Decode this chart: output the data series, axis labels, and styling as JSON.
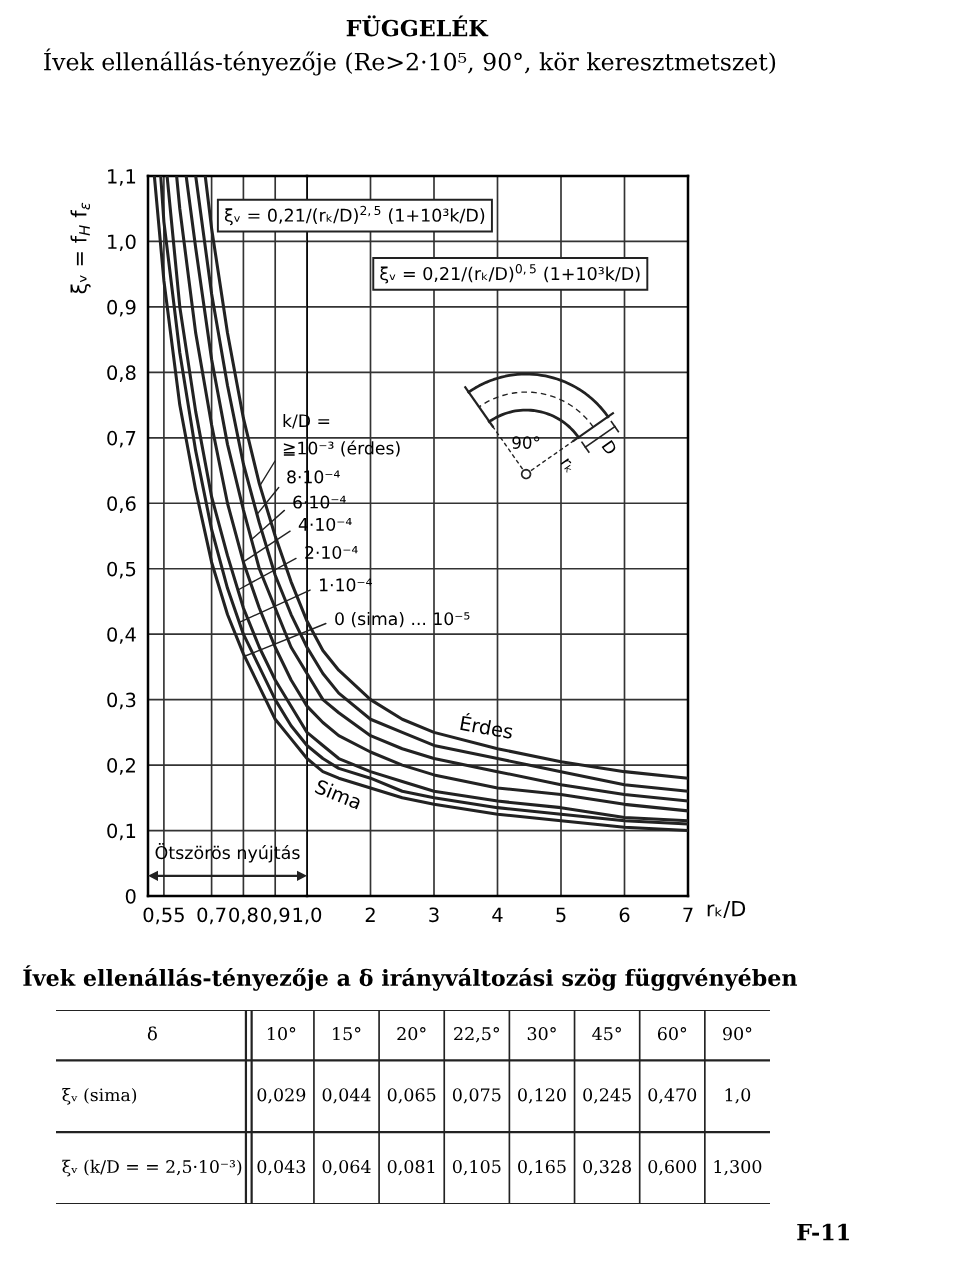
{
  "chart_data": [
    {
      "type": "line",
      "title": "Ívek ellenállás-tényezője (Re>2·10⁵, 90°, kör keresztmetszet)",
      "ylabel": "ξᵥ = f$_{H}$ f$_{ε}$",
      "legend": "right",
      "legend_title": "k/D =",
      "xlim": [
        0.5,
        1.0
      ],
      "ylim": [
        0,
        1.1
      ],
      "xticks": [
        {
          "value": 0.55,
          "label": "0,55"
        },
        {
          "value": 0.7,
          "label": "0,7"
        },
        {
          "value": 0.8,
          "label": "0,8"
        },
        {
          "value": 0.9,
          "label": "0,9"
        },
        {
          "value": 1.0,
          "label": "1,0"
        }
      ],
      "yticks": [
        0,
        {
          "value": 0.1,
          "label": "0,1"
        },
        {
          "value": 0.2,
          "label": "0,2"
        },
        {
          "value": 0.3,
          "label": "0,3"
        },
        {
          "value": 0.4,
          "label": "0,4"
        },
        {
          "value": 0.5,
          "label": "0,5"
        },
        {
          "value": 0.6,
          "label": "0,6"
        },
        {
          "value": 0.7,
          "label": "0,7"
        },
        {
          "value": 0.8,
          "label": "0,8"
        },
        {
          "value": 0.9,
          "label": "0,9"
        },
        {
          "value": 1.0,
          "label": "1,0"
        },
        {
          "value": 1.1,
          "label": "1,1"
        }
      ],
      "grid": true,
      "series": [
        {
          "name": "≧10⁻³ (érdes)",
          "color": "#222222",
          "x": [
            0.68,
            0.7,
            0.75,
            0.8,
            0.85,
            0.9,
            0.95,
            1.0
          ],
          "values": [
            1.1,
            1.02,
            0.86,
            0.73,
            0.63,
            0.55,
            0.48,
            0.42
          ]
        },
        {
          "name": "8·10⁻⁴",
          "color": "#222222",
          "x": [
            0.65,
            0.7,
            0.75,
            0.8,
            0.85,
            0.9,
            0.95,
            1.0
          ],
          "values": [
            1.1,
            0.92,
            0.78,
            0.66,
            0.57,
            0.49,
            0.43,
            0.38
          ]
        },
        {
          "name": "6·10⁻⁴",
          "color": "#222222",
          "x": [
            0.62,
            0.65,
            0.7,
            0.75,
            0.8,
            0.85,
            0.9,
            0.95,
            1.0
          ],
          "values": [
            1.1,
            0.99,
            0.82,
            0.69,
            0.59,
            0.5,
            0.44,
            0.38,
            0.34
          ]
        },
        {
          "name": "4·10⁻⁴",
          "color": "#222222",
          "x": [
            0.59,
            0.6,
            0.65,
            0.7,
            0.75,
            0.8,
            0.85,
            0.9,
            0.95,
            1.0
          ],
          "values": [
            1.1,
            1.05,
            0.86,
            0.72,
            0.6,
            0.51,
            0.44,
            0.38,
            0.33,
            0.29
          ]
        },
        {
          "name": "2·10⁻⁴",
          "color": "#222222",
          "x": [
            0.56,
            0.6,
            0.65,
            0.7,
            0.75,
            0.8,
            0.85,
            0.9,
            0.95,
            1.0
          ],
          "values": [
            1.1,
            0.9,
            0.74,
            0.61,
            0.52,
            0.44,
            0.38,
            0.33,
            0.29,
            0.25
          ]
        },
        {
          "name": "1·10⁻⁴",
          "color": "#222222",
          "x": [
            0.54,
            0.55,
            0.6,
            0.65,
            0.7,
            0.75,
            0.8,
            0.85,
            0.9,
            0.95,
            1.0
          ],
          "values": [
            1.1,
            1.03,
            0.83,
            0.68,
            0.56,
            0.47,
            0.4,
            0.35,
            0.3,
            0.26,
            0.23
          ]
        },
        {
          "name": "0 (sima) ... 10⁻⁵",
          "color": "#222222",
          "x": [
            0.52,
            0.55,
            0.6,
            0.65,
            0.7,
            0.75,
            0.8,
            0.85,
            0.9,
            0.95,
            1.0
          ],
          "values": [
            1.1,
            0.94,
            0.75,
            0.62,
            0.51,
            0.43,
            0.37,
            0.32,
            0.27,
            0.24,
            0.21
          ]
        }
      ],
      "annotations": [
        "FÜGGELÉK",
        "ξᵥ = 0,21/(rₖ/D)$^{2,5}$ (1+10³k/D)",
        "Ötszörös nyújtás"
      ]
    },
    {
      "type": "line",
      "xlabel": "rₖ/D",
      "xlim": [
        1.0,
        7
      ],
      "ylim": [
        0,
        1.1
      ],
      "xticks": [
        2,
        3,
        4,
        5,
        6,
        7
      ],
      "yticks": [
        {
          "value": 0,
          "label": null
        },
        {
          "value": 0.1,
          "label": null
        },
        {
          "value": 0.2,
          "label": null
        },
        {
          "value": 0.3,
          "label": null
        },
        {
          "value": 0.4,
          "label": null
        },
        {
          "value": 0.5,
          "label": null
        },
        {
          "value": 0.6,
          "label": null
        },
        {
          "value": 0.7,
          "label": null
        },
        {
          "value": 0.8,
          "label": null
        },
        {
          "value": 0.9,
          "label": null
        },
        {
          "value": 1.0,
          "label": null
        },
        {
          "value": 1.1,
          "label": null
        }
      ],
      "tick_labels": "x",
      "grid": true,
      "x": [
        1.0,
        1.25,
        1.5,
        2,
        2.5,
        3,
        4,
        5,
        6,
        7
      ],
      "series": [
        {
          "color": "#222222",
          "values": [
            0.42,
            0.375,
            0.345,
            0.3,
            0.27,
            0.25,
            0.225,
            0.205,
            0.19,
            0.18
          ]
        },
        {
          "color": "#222222",
          "values": [
            0.38,
            0.34,
            0.31,
            0.27,
            0.25,
            0.23,
            0.21,
            0.19,
            0.17,
            0.16
          ]
        },
        {
          "color": "#222222",
          "values": [
            0.34,
            0.3,
            0.28,
            0.245,
            0.225,
            0.21,
            0.19,
            0.17,
            0.155,
            0.145
          ]
        },
        {
          "color": "#222222",
          "values": [
            0.29,
            0.265,
            0.245,
            0.22,
            0.2,
            0.185,
            0.165,
            0.155,
            0.14,
            0.13
          ]
        },
        {
          "color": "#222222",
          "values": [
            0.25,
            0.23,
            0.21,
            0.19,
            0.175,
            0.16,
            0.145,
            0.135,
            0.12,
            0.115
          ]
        },
        {
          "color": "#222222",
          "values": [
            0.23,
            0.21,
            0.195,
            0.18,
            0.16,
            0.15,
            0.135,
            0.125,
            0.115,
            0.11
          ]
        },
        {
          "color": "#222222",
          "values": [
            0.21,
            0.19,
            0.18,
            0.165,
            0.15,
            0.14,
            0.125,
            0.115,
            0.105,
            0.1
          ]
        }
      ],
      "annotations": [
        "ξᵥ = 0,21/(rₖ/D)$^{0,5}$ (1+10³k/D)",
        "Érdes",
        "Sima",
        "90°",
        "D",
        "rₖ"
      ]
    },
    {
      "type": "other",
      "title": "Ívek ellenállás-tényezője a δ irányváltozási szög függvényében",
      "xlabel": "δ",
      "categories": [
        "10°",
        "15°",
        "20°",
        "22,5°",
        "30°",
        "45°",
        "60°",
        "90°"
      ],
      "y_categories": [
        "ξᵥ (sima)",
        "ξᵥ (k/D = = 2,5·10⁻³)"
      ],
      "cell_labels": [
        [
          "0,029",
          "0,044",
          "0,065",
          "0,075",
          "0,120",
          "0,245",
          "0,470",
          "1,0"
        ],
        [
          "0,043",
          "0,064",
          "0,081",
          "0,105",
          "0,165",
          "0,328",
          "0,600",
          "1,300"
        ]
      ],
      "annotations": [
        "F-11"
      ]
    }
  ]
}
